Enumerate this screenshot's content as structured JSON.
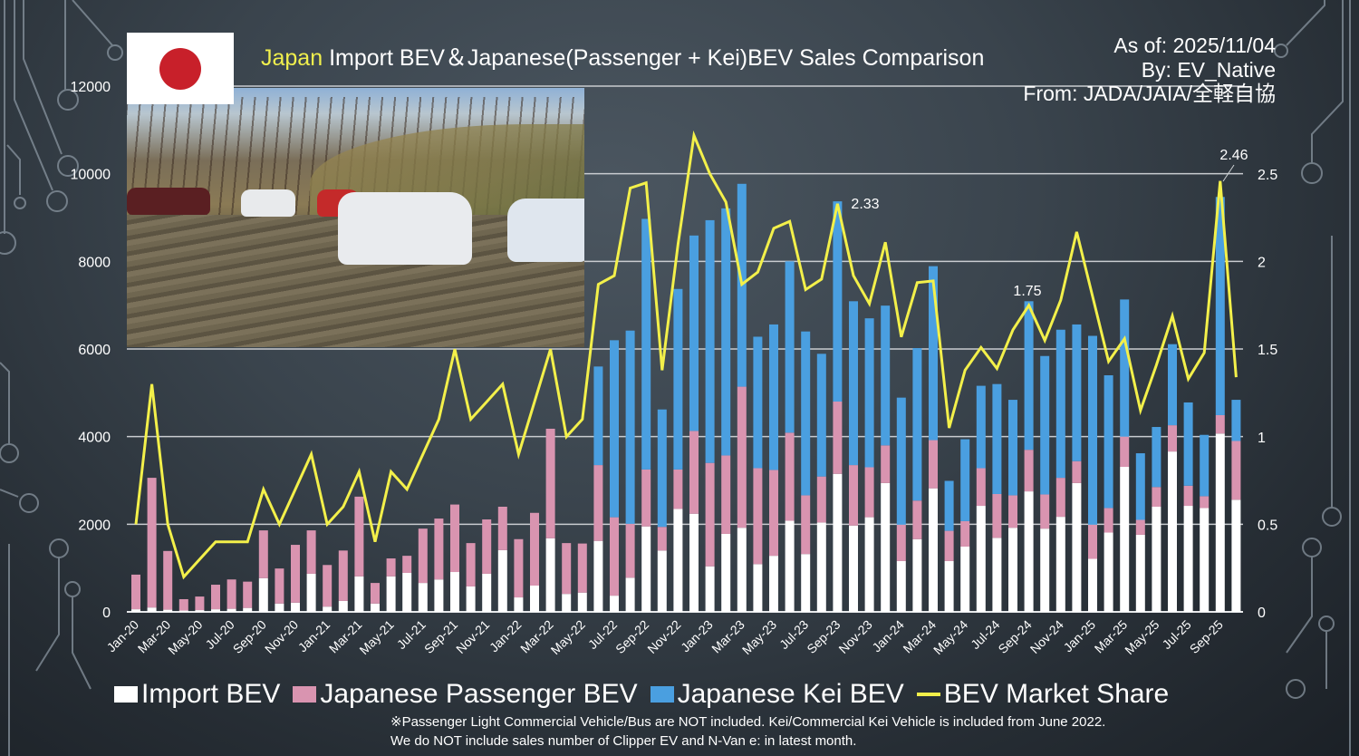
{
  "header": {
    "title_highlight": "Japan",
    "title_rest": "Import BEV＆Japanese(Passenger + Kei)BEV Sales Comparison",
    "as_of": "As of: 2025/11/04",
    "by": "By: EV_Native",
    "from": "From: JADA/JAIA/全軽自協"
  },
  "colors": {
    "import": "#ffffff",
    "passenger": "#d994b0",
    "kei": "#4a9fe0",
    "share": "#f3f04a",
    "grid": "#c9ccd0",
    "flag_red": "#c8202a"
  },
  "legend": [
    {
      "label": "Import BEV",
      "type": "bar",
      "color": "#ffffff"
    },
    {
      "label": "Japanese Passenger BEV",
      "type": "bar",
      "color": "#d994b0"
    },
    {
      "label": "Japanese Kei BEV",
      "type": "bar",
      "color": "#4a9fe0"
    },
    {
      "label": "BEV Market Share",
      "type": "line",
      "color": "#f3f04a"
    }
  ],
  "footnotes": [
    "※Passenger Light Commercial Vehicle/Bus are NOT included. Kei/Commercial Kei Vehicle is included from June 2022.",
    "We do NOT include sales number of Clipper EV and N-Van e: in latest month."
  ],
  "chart_data": {
    "type": "bar",
    "stacked": true,
    "title": "Japan Import BEV＆Japanese(Passenger + Kei)BEV Sales Comparison",
    "xlabel": "",
    "ylabel": "",
    "y2label": "",
    "ylim": [
      0,
      12000
    ],
    "y2lim": [
      0,
      3
    ],
    "yticks": [
      0,
      2000,
      4000,
      6000,
      8000,
      10000,
      12000
    ],
    "y2ticks": [
      "0",
      "0.5",
      "1",
      "1.5",
      "2",
      "2.5"
    ],
    "grid": true,
    "legend_position": "bottom",
    "xtick_labels_shown": [
      "Jan-20",
      "Mar-20",
      "May-20",
      "Jul-20",
      "Sep-20",
      "Nov-20",
      "Jan-21",
      "Mar-21",
      "May-21",
      "Jul-21",
      "Sep-21",
      "Nov-21",
      "Jan-22",
      "Mar-22",
      "May-22",
      "Jul-22",
      "Sep-22",
      "Nov-22",
      "Jan-23",
      "Mar-23",
      "May-23",
      "Jul-23",
      "Sep-23",
      "Nov-23",
      "Jan-24",
      "Mar-24",
      "May-24",
      "Jul-24",
      "Sep-24",
      "Nov-24",
      "Jan-25",
      "Mar-25",
      "May-25",
      "Jul-25",
      "Sep-25"
    ],
    "categories": [
      "Jan-20",
      "Feb-20",
      "Mar-20",
      "Apr-20",
      "May-20",
      "Jun-20",
      "Jul-20",
      "Aug-20",
      "Sep-20",
      "Oct-20",
      "Nov-20",
      "Dec-20",
      "Jan-21",
      "Feb-21",
      "Mar-21",
      "Apr-21",
      "May-21",
      "Jun-21",
      "Jul-21",
      "Aug-21",
      "Sep-21",
      "Oct-21",
      "Nov-21",
      "Dec-21",
      "Jan-22",
      "Feb-22",
      "Mar-22",
      "Apr-22",
      "May-22",
      "Jun-22",
      "Jul-22",
      "Aug-22",
      "Sep-22",
      "Oct-22",
      "Nov-22",
      "Dec-22",
      "Jan-23",
      "Feb-23",
      "Mar-23",
      "Apr-23",
      "May-23",
      "Jun-23",
      "Jul-23",
      "Aug-23",
      "Sep-23",
      "Oct-23",
      "Nov-23",
      "Dec-23",
      "Jan-24",
      "Feb-24",
      "Mar-24",
      "Apr-24",
      "May-24",
      "Jun-24",
      "Jul-24",
      "Aug-24",
      "Sep-24",
      "Oct-24",
      "Nov-24",
      "Dec-24",
      "Jan-25",
      "Feb-25",
      "Mar-25",
      "Apr-25",
      "May-25",
      "Jun-25",
      "Jul-25",
      "Aug-25",
      "Sep-25",
      "Oct-25"
    ],
    "series": [
      {
        "name": "Import BEV",
        "type": "bar",
        "axis": "left",
        "values": [
          60,
          100,
          50,
          30,
          40,
          60,
          70,
          90,
          770,
          190,
          210,
          870,
          120,
          250,
          810,
          190,
          810,
          890,
          660,
          740,
          910,
          580,
          870,
          1410,
          330,
          600,
          1680,
          410,
          440,
          1620,
          370,
          780,
          1950,
          1400,
          2350,
          2240,
          1040,
          1780,
          1920,
          1090,
          1280,
          2080,
          1320,
          2040,
          3150,
          1970,
          2160,
          2940,
          1160,
          1660,
          2820,
          1160,
          1490,
          2420,
          1690,
          1920,
          2750,
          1900,
          2170,
          2940,
          1210,
          1810,
          3310,
          1760,
          2400,
          3660,
          2420,
          2370,
          4070,
          2560
        ]
      },
      {
        "name": "Japanese Passenger BEV",
        "type": "bar",
        "axis": "left",
        "values": [
          790,
          2960,
          1340,
          260,
          310,
          560,
          670,
          600,
          1090,
          800,
          1320,
          990,
          950,
          1150,
          1820,
          470,
          410,
          390,
          1240,
          1390,
          1540,
          990,
          1240,
          990,
          1330,
          1660,
          2500,
          1160,
          1120,
          1730,
          1790,
          1230,
          1300,
          540,
          900,
          1890,
          2360,
          1790,
          3220,
          2190,
          1960,
          2010,
          1340,
          1050,
          1650,
          1380,
          1140,
          860,
          830,
          880,
          1100,
          690,
          580,
          860,
          1000,
          740,
          950,
          780,
          890,
          500,
          780,
          560,
          690,
          340,
          450,
          600,
          460,
          270,
          420,
          1340
        ]
      },
      {
        "name": "Japanese Kei BEV",
        "type": "bar",
        "axis": "left",
        "values": [
          0,
          0,
          0,
          0,
          0,
          0,
          0,
          0,
          0,
          0,
          0,
          0,
          0,
          0,
          0,
          0,
          0,
          0,
          0,
          0,
          0,
          0,
          0,
          0,
          0,
          0,
          0,
          0,
          0,
          2250,
          4040,
          4410,
          5720,
          2680,
          4120,
          4460,
          5540,
          5640,
          4630,
          3000,
          3320,
          3910,
          3740,
          2800,
          4570,
          3740,
          3400,
          3190,
          2900,
          3480,
          3970,
          1140,
          1870,
          1880,
          2510,
          2180,
          3390,
          3160,
          3380,
          3120,
          4310,
          3030,
          3130,
          1520,
          1370,
          1850,
          1900,
          1400,
          4980,
          940
        ]
      },
      {
        "name": "BEV Market Share",
        "type": "line",
        "axis": "right",
        "values": [
          0.5,
          1.3,
          0.5,
          0.2,
          0.3,
          0.4,
          0.4,
          0.4,
          0.7,
          0.5,
          0.7,
          0.9,
          0.5,
          0.6,
          0.8,
          0.4,
          0.8,
          0.7,
          0.9,
          1.1,
          1.5,
          1.1,
          1.2,
          1.3,
          0.9,
          1.2,
          1.5,
          1.0,
          1.1,
          1.87,
          1.92,
          2.42,
          2.45,
          1.38,
          2.1,
          2.72,
          2.5,
          2.34,
          1.87,
          1.94,
          2.19,
          2.23,
          1.84,
          1.9,
          2.33,
          1.92,
          1.76,
          2.11,
          1.57,
          1.88,
          1.89,
          1.05,
          1.38,
          1.51,
          1.39,
          1.61,
          1.75,
          1.55,
          1.78,
          2.17,
          1.8,
          1.43,
          1.56,
          1.15,
          1.41,
          1.69,
          1.33,
          1.48,
          2.46,
          1.34
        ]
      }
    ],
    "annotations": [
      {
        "category": "Sep-23",
        "series": "BEV Market Share",
        "text": "2.33"
      },
      {
        "category": "Sep-24",
        "series": "BEV Market Share",
        "text": "1.75"
      },
      {
        "category": "Sep-25",
        "series": "BEV Market Share",
        "text": "2.46"
      }
    ]
  }
}
